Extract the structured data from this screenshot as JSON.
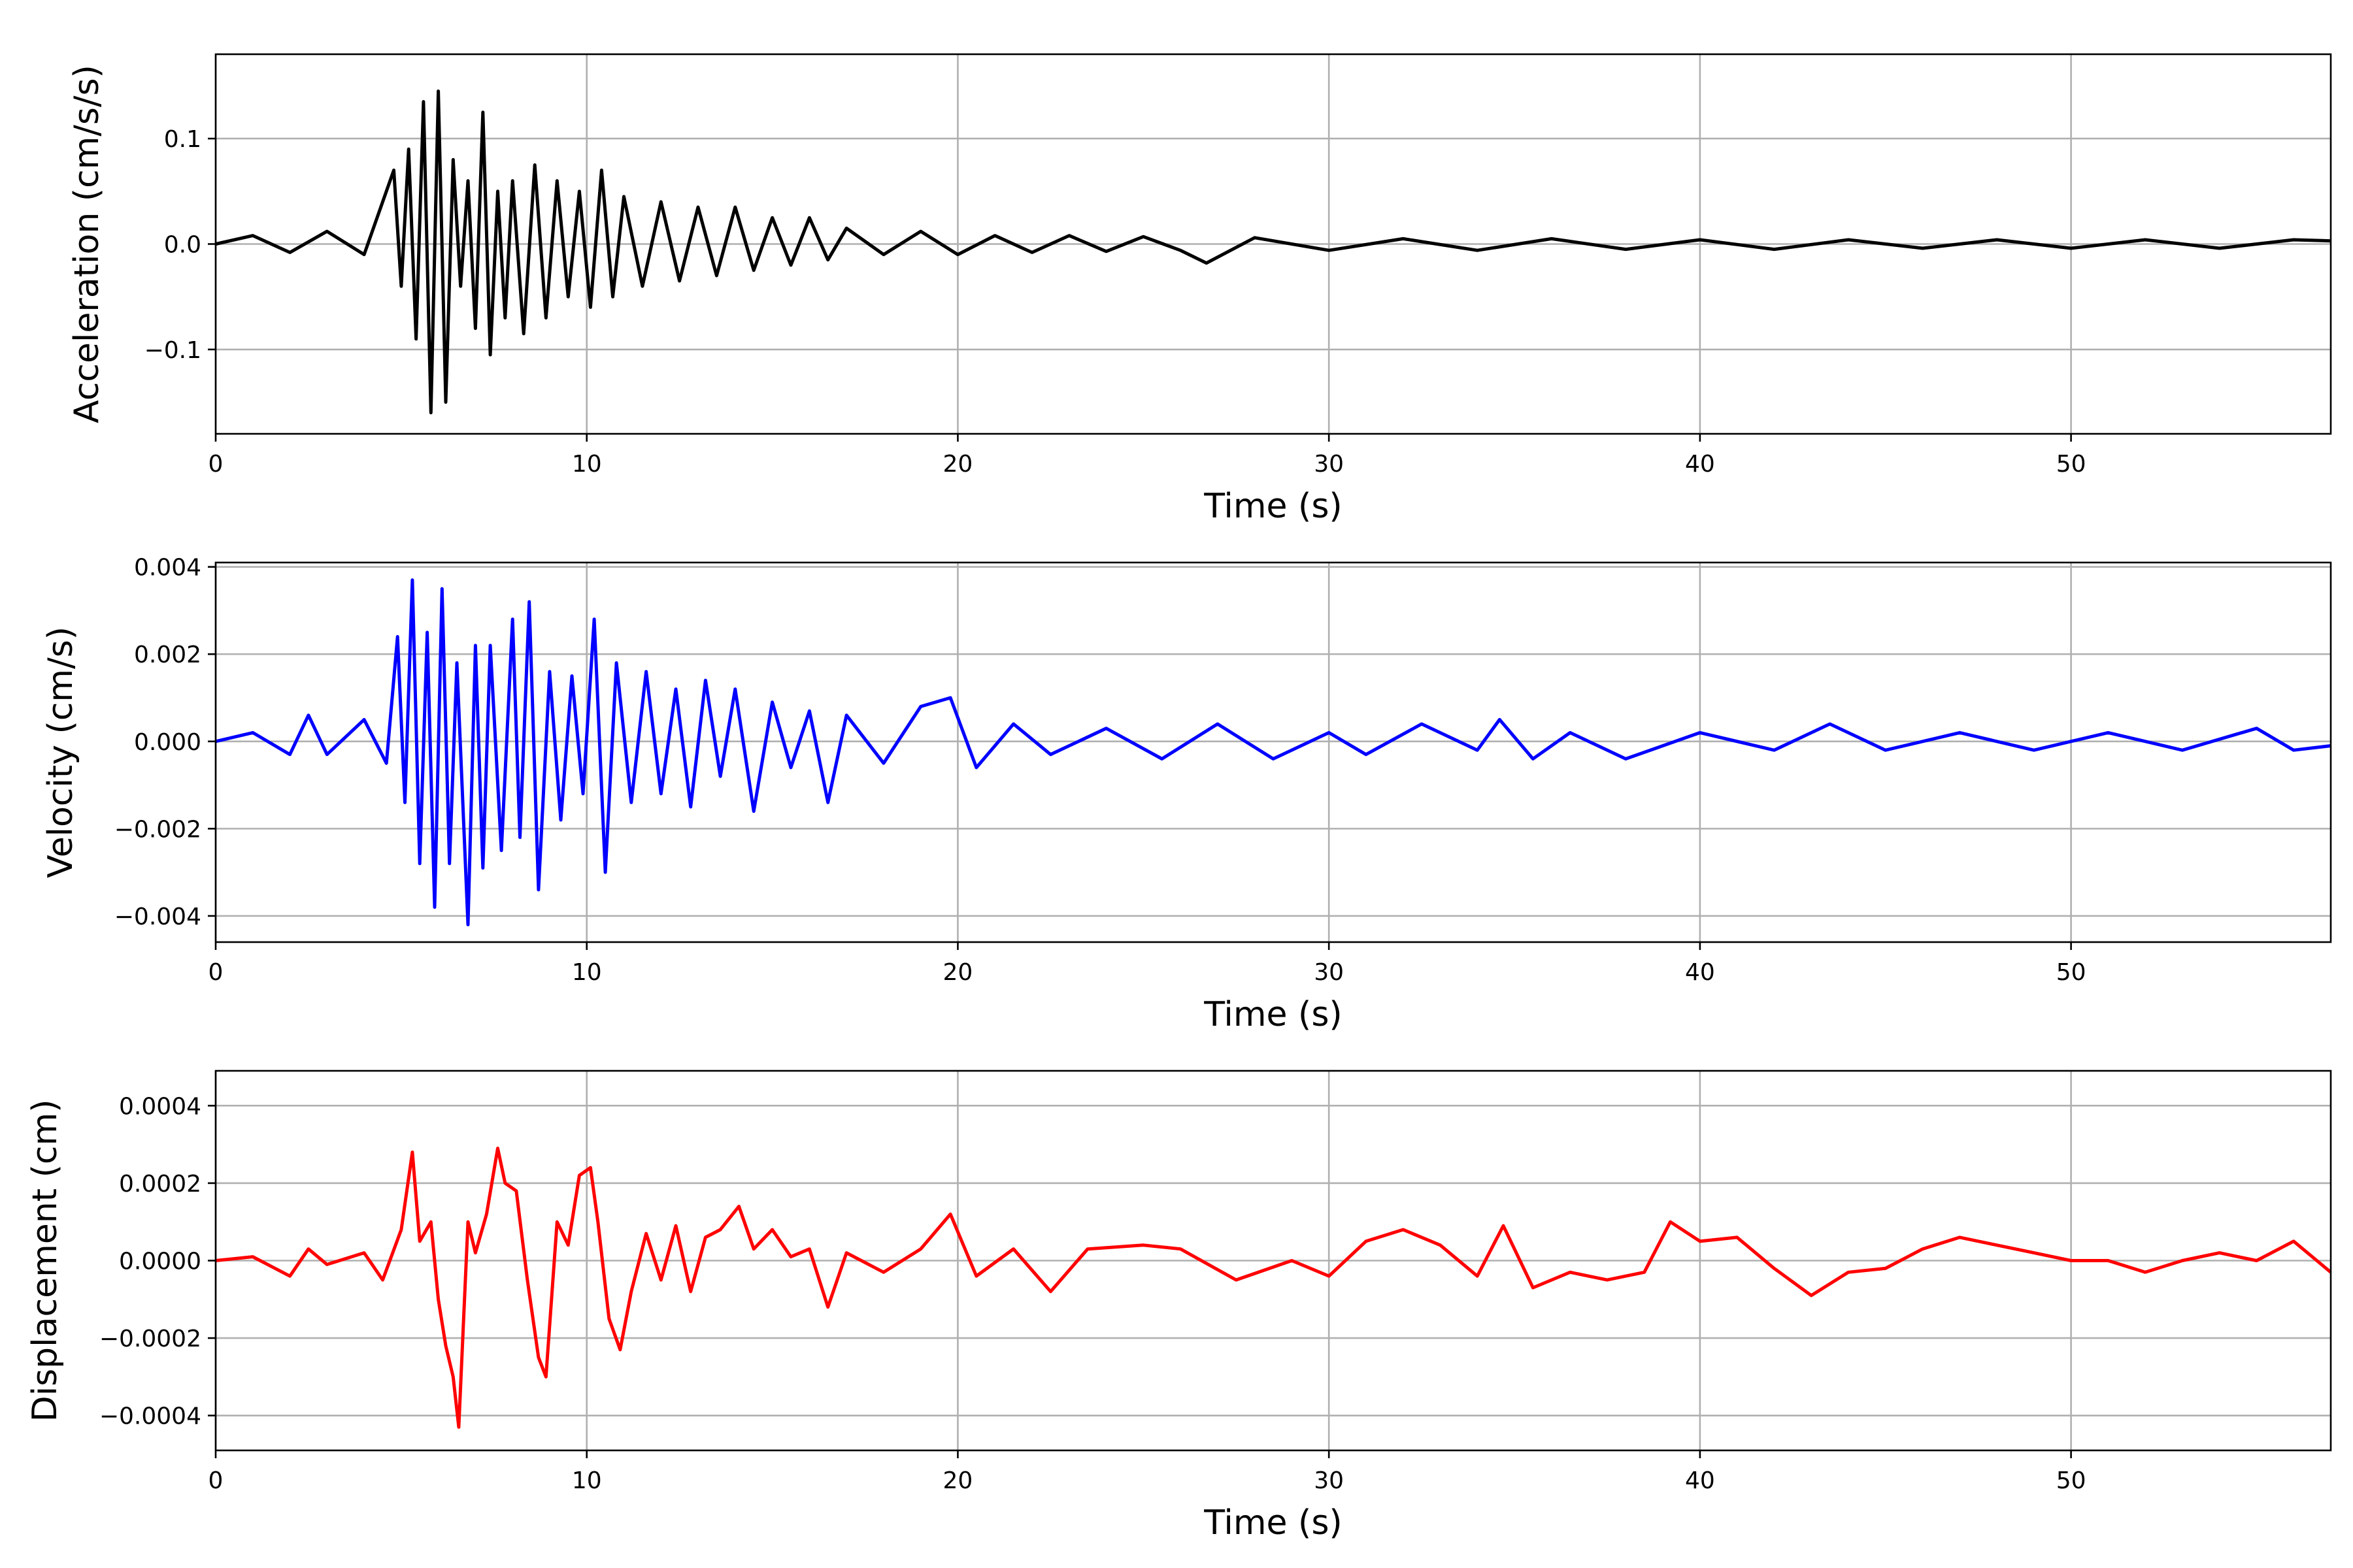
{
  "chart_data": [
    {
      "type": "line",
      "title": "",
      "xlabel": "Time (s)",
      "ylabel": "Acceleration (cm/s/s)",
      "xlim": [
        0,
        57
      ],
      "ylim": [
        -0.18,
        0.18
      ],
      "xticks": [
        0,
        10,
        20,
        30,
        40,
        50
      ],
      "xtick_labels": [
        "0",
        "10",
        "20",
        "30",
        "40",
        "50"
      ],
      "yticks": [
        -0.1,
        0.0,
        0.1
      ],
      "ytick_labels": [
        "−0.1",
        "0.0",
        "0.1"
      ],
      "grid": true,
      "color": "#000000",
      "series": [
        {
          "x": [
            0,
            1,
            2,
            3,
            4,
            4.8,
            5.0,
            5.2,
            5.4,
            5.6,
            5.8,
            6.0,
            6.2,
            6.4,
            6.6,
            6.8,
            7.0,
            7.2,
            7.4,
            7.6,
            7.8,
            8.0,
            8.3,
            8.6,
            8.9,
            9.2,
            9.5,
            9.8,
            10.1,
            10.4,
            10.7,
            11.0,
            11.5,
            12.0,
            12.5,
            13.0,
            13.5,
            14.0,
            14.5,
            15.0,
            15.5,
            16.0,
            16.5,
            17.0,
            18.0,
            19.0,
            20.0,
            21.0,
            22.0,
            23.0,
            24.0,
            25.0,
            26.0,
            26.7,
            28.0,
            30.0,
            32.0,
            34.0,
            36.0,
            38.0,
            40.0,
            42.0,
            44.0,
            46.0,
            48.0,
            50.0,
            52.0,
            54.0,
            56.0,
            57.0
          ],
          "values": [
            0.0,
            0.008,
            -0.008,
            0.012,
            -0.01,
            0.07,
            -0.04,
            0.09,
            -0.09,
            0.135,
            -0.16,
            0.145,
            -0.15,
            0.08,
            -0.04,
            0.06,
            -0.08,
            0.125,
            -0.105,
            0.05,
            -0.07,
            0.06,
            -0.085,
            0.075,
            -0.07,
            0.06,
            -0.05,
            0.05,
            -0.06,
            0.07,
            -0.05,
            0.045,
            -0.04,
            0.04,
            -0.035,
            0.035,
            -0.03,
            0.035,
            -0.025,
            0.025,
            -0.02,
            0.025,
            -0.015,
            0.015,
            -0.01,
            0.012,
            -0.01,
            0.008,
            -0.008,
            0.008,
            -0.007,
            0.007,
            -0.006,
            -0.018,
            0.006,
            -0.006,
            0.005,
            -0.006,
            0.005,
            -0.005,
            0.004,
            -0.005,
            0.004,
            -0.004,
            0.004,
            -0.004,
            0.004,
            -0.004,
            0.004,
            0.003
          ]
        }
      ]
    },
    {
      "type": "line",
      "title": "",
      "xlabel": "Time (s)",
      "ylabel": "Velocity (cm/s)",
      "xlim": [
        0,
        57
      ],
      "ylim": [
        -0.0046,
        0.0041
      ],
      "xticks": [
        0,
        10,
        20,
        30,
        40,
        50
      ],
      "xtick_labels": [
        "0",
        "10",
        "20",
        "30",
        "40",
        "50"
      ],
      "yticks": [
        -0.004,
        -0.002,
        0.0,
        0.002,
        0.004
      ],
      "ytick_labels": [
        "−0.004",
        "−0.002",
        "0.000",
        "0.002",
        "0.004"
      ],
      "grid": true,
      "color": "#0000ff",
      "series": [
        {
          "x": [
            0,
            1,
            2,
            2.5,
            3,
            4,
            4.6,
            4.9,
            5.1,
            5.3,
            5.5,
            5.7,
            5.9,
            6.1,
            6.3,
            6.5,
            6.8,
            7.0,
            7.2,
            7.4,
            7.7,
            8.0,
            8.2,
            8.45,
            8.7,
            9.0,
            9.3,
            9.6,
            9.9,
            10.2,
            10.5,
            10.8,
            11.2,
            11.6,
            12.0,
            12.4,
            12.8,
            13.2,
            13.6,
            14.0,
            14.5,
            15.0,
            15.5,
            16.0,
            16.5,
            17.0,
            18.0,
            19.0,
            19.8,
            20.5,
            21.5,
            22.5,
            24.0,
            25.5,
            27.0,
            28.5,
            30.0,
            31.0,
            32.5,
            34.0,
            34.6,
            35.5,
            36.5,
            38.0,
            40.0,
            42.0,
            43.5,
            45.0,
            47.0,
            49.0,
            51.0,
            53.0,
            55.0,
            56.0,
            57.0
          ],
          "values": [
            0.0,
            0.0002,
            -0.0003,
            0.0006,
            -0.0003,
            0.0005,
            -0.0005,
            0.0024,
            -0.0014,
            0.0037,
            -0.0028,
            0.0025,
            -0.0038,
            0.0035,
            -0.0028,
            0.0018,
            -0.0042,
            0.0022,
            -0.0029,
            0.0022,
            -0.0025,
            0.0028,
            -0.0022,
            0.0032,
            -0.0034,
            0.0016,
            -0.0018,
            0.0015,
            -0.0012,
            0.0028,
            -0.003,
            0.0018,
            -0.0014,
            0.0016,
            -0.0012,
            0.0012,
            -0.0015,
            0.0014,
            -0.0008,
            0.0012,
            -0.0016,
            0.0009,
            -0.0006,
            0.0007,
            -0.0014,
            0.0006,
            -0.0005,
            0.0008,
            0.001,
            -0.0006,
            0.0004,
            -0.0003,
            0.0003,
            -0.0004,
            0.0004,
            -0.0004,
            0.0002,
            -0.0003,
            0.0004,
            -0.0002,
            0.0005,
            -0.0004,
            0.0002,
            -0.0004,
            0.0002,
            -0.0002,
            0.0004,
            -0.0002,
            0.0002,
            -0.0002,
            0.0002,
            -0.0002,
            0.0003,
            -0.0002,
            -0.0001
          ]
        }
      ]
    },
    {
      "type": "line",
      "title": "",
      "xlabel": "Time (s)",
      "ylabel": "Displacement (cm)",
      "xlim": [
        0,
        57
      ],
      "ylim": [
        -0.00049,
        0.00049
      ],
      "xticks": [
        0,
        10,
        20,
        30,
        40,
        50
      ],
      "xtick_labels": [
        "0",
        "10",
        "20",
        "30",
        "40",
        "50"
      ],
      "yticks": [
        -0.0004,
        -0.0002,
        0.0,
        0.0002,
        0.0004
      ],
      "ytick_labels": [
        "−0.0004",
        "−0.0002",
        "0.0000",
        "0.0002",
        "0.0004"
      ],
      "grid": true,
      "color": "#ff0000",
      "series": [
        {
          "x": [
            0,
            1,
            2,
            2.5,
            3,
            4,
            4.5,
            5.0,
            5.3,
            5.5,
            5.8,
            6.0,
            6.2,
            6.4,
            6.55,
            6.8,
            7.0,
            7.3,
            7.6,
            7.8,
            8.1,
            8.4,
            8.7,
            8.9,
            9.2,
            9.5,
            9.8,
            10.1,
            10.3,
            10.6,
            10.9,
            11.2,
            11.6,
            12.0,
            12.4,
            12.8,
            13.2,
            13.6,
            14.1,
            14.5,
            15.0,
            15.5,
            16.0,
            16.5,
            17.0,
            18.0,
            19.0,
            19.8,
            20.5,
            21.5,
            22.5,
            23.5,
            25.0,
            26.0,
            27.5,
            29.0,
            30.0,
            31.0,
            32.0,
            33.0,
            34.0,
            34.7,
            35.5,
            36.5,
            37.5,
            38.5,
            39.2,
            40.0,
            41.0,
            42.0,
            43.0,
            44.0,
            45.0,
            46.0,
            47.0,
            48.0,
            49.0,
            50.0,
            51.0,
            52.0,
            53.0,
            54.0,
            55.0,
            56.0,
            57.0
          ],
          "values": [
            0.0,
            1e-05,
            -4e-05,
            3e-05,
            -1e-05,
            2e-05,
            -5e-05,
            8e-05,
            0.00028,
            5e-05,
            0.0001,
            -0.0001,
            -0.00022,
            -0.0003,
            -0.00043,
            0.0001,
            2e-05,
            0.00012,
            0.00029,
            0.0002,
            0.00018,
            -5e-05,
            -0.00025,
            -0.0003,
            0.0001,
            4e-05,
            0.00022,
            0.00024,
            0.0001,
            -0.00015,
            -0.00023,
            -8e-05,
            7e-05,
            -5e-05,
            9e-05,
            -8e-05,
            6e-05,
            8e-05,
            0.00014,
            3e-05,
            8e-05,
            1e-05,
            3e-05,
            -0.00012,
            2e-05,
            -3e-05,
            3e-05,
            0.00012,
            -4e-05,
            3e-05,
            -8e-05,
            3e-05,
            4e-05,
            3e-05,
            -5e-05,
            0.0,
            -4e-05,
            5e-05,
            8e-05,
            4e-05,
            -4e-05,
            9e-05,
            -7e-05,
            -3e-05,
            -5e-05,
            -3e-05,
            0.0001,
            5e-05,
            6e-05,
            -2e-05,
            -9e-05,
            -3e-05,
            -2e-05,
            3e-05,
            6e-05,
            4e-05,
            2e-05,
            0.0,
            0.0,
            -3e-05,
            0.0,
            2e-05,
            0.0,
            5e-05,
            -3e-05
          ]
        }
      ]
    }
  ]
}
